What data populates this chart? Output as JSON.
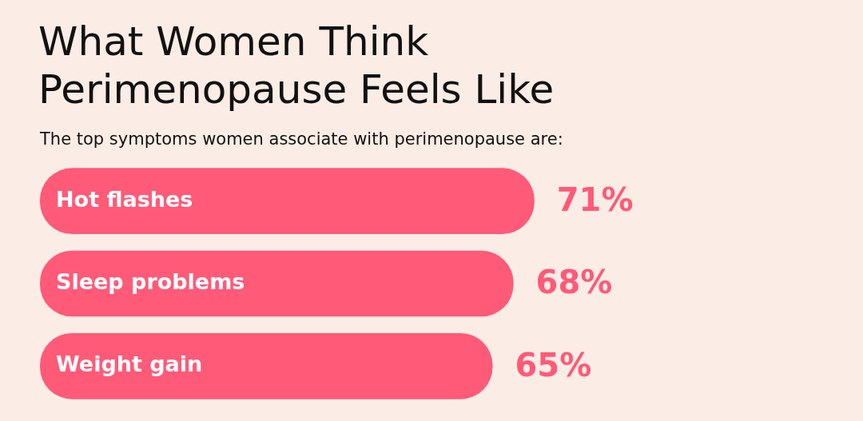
{
  "chart_data": {
    "type": "bar",
    "orientation": "horizontal",
    "title": "What Women Think Perimenopause Feels Like",
    "subtitle": "The top symptoms women associate with perimenopause are:",
    "categories": [
      "Hot flashes",
      "Sleep problems",
      "Weight gain"
    ],
    "values": [
      71,
      68,
      65
    ],
    "color": "#ff5a78",
    "value_labels": [
      "71%",
      "68%",
      "65%"
    ]
  }
}
